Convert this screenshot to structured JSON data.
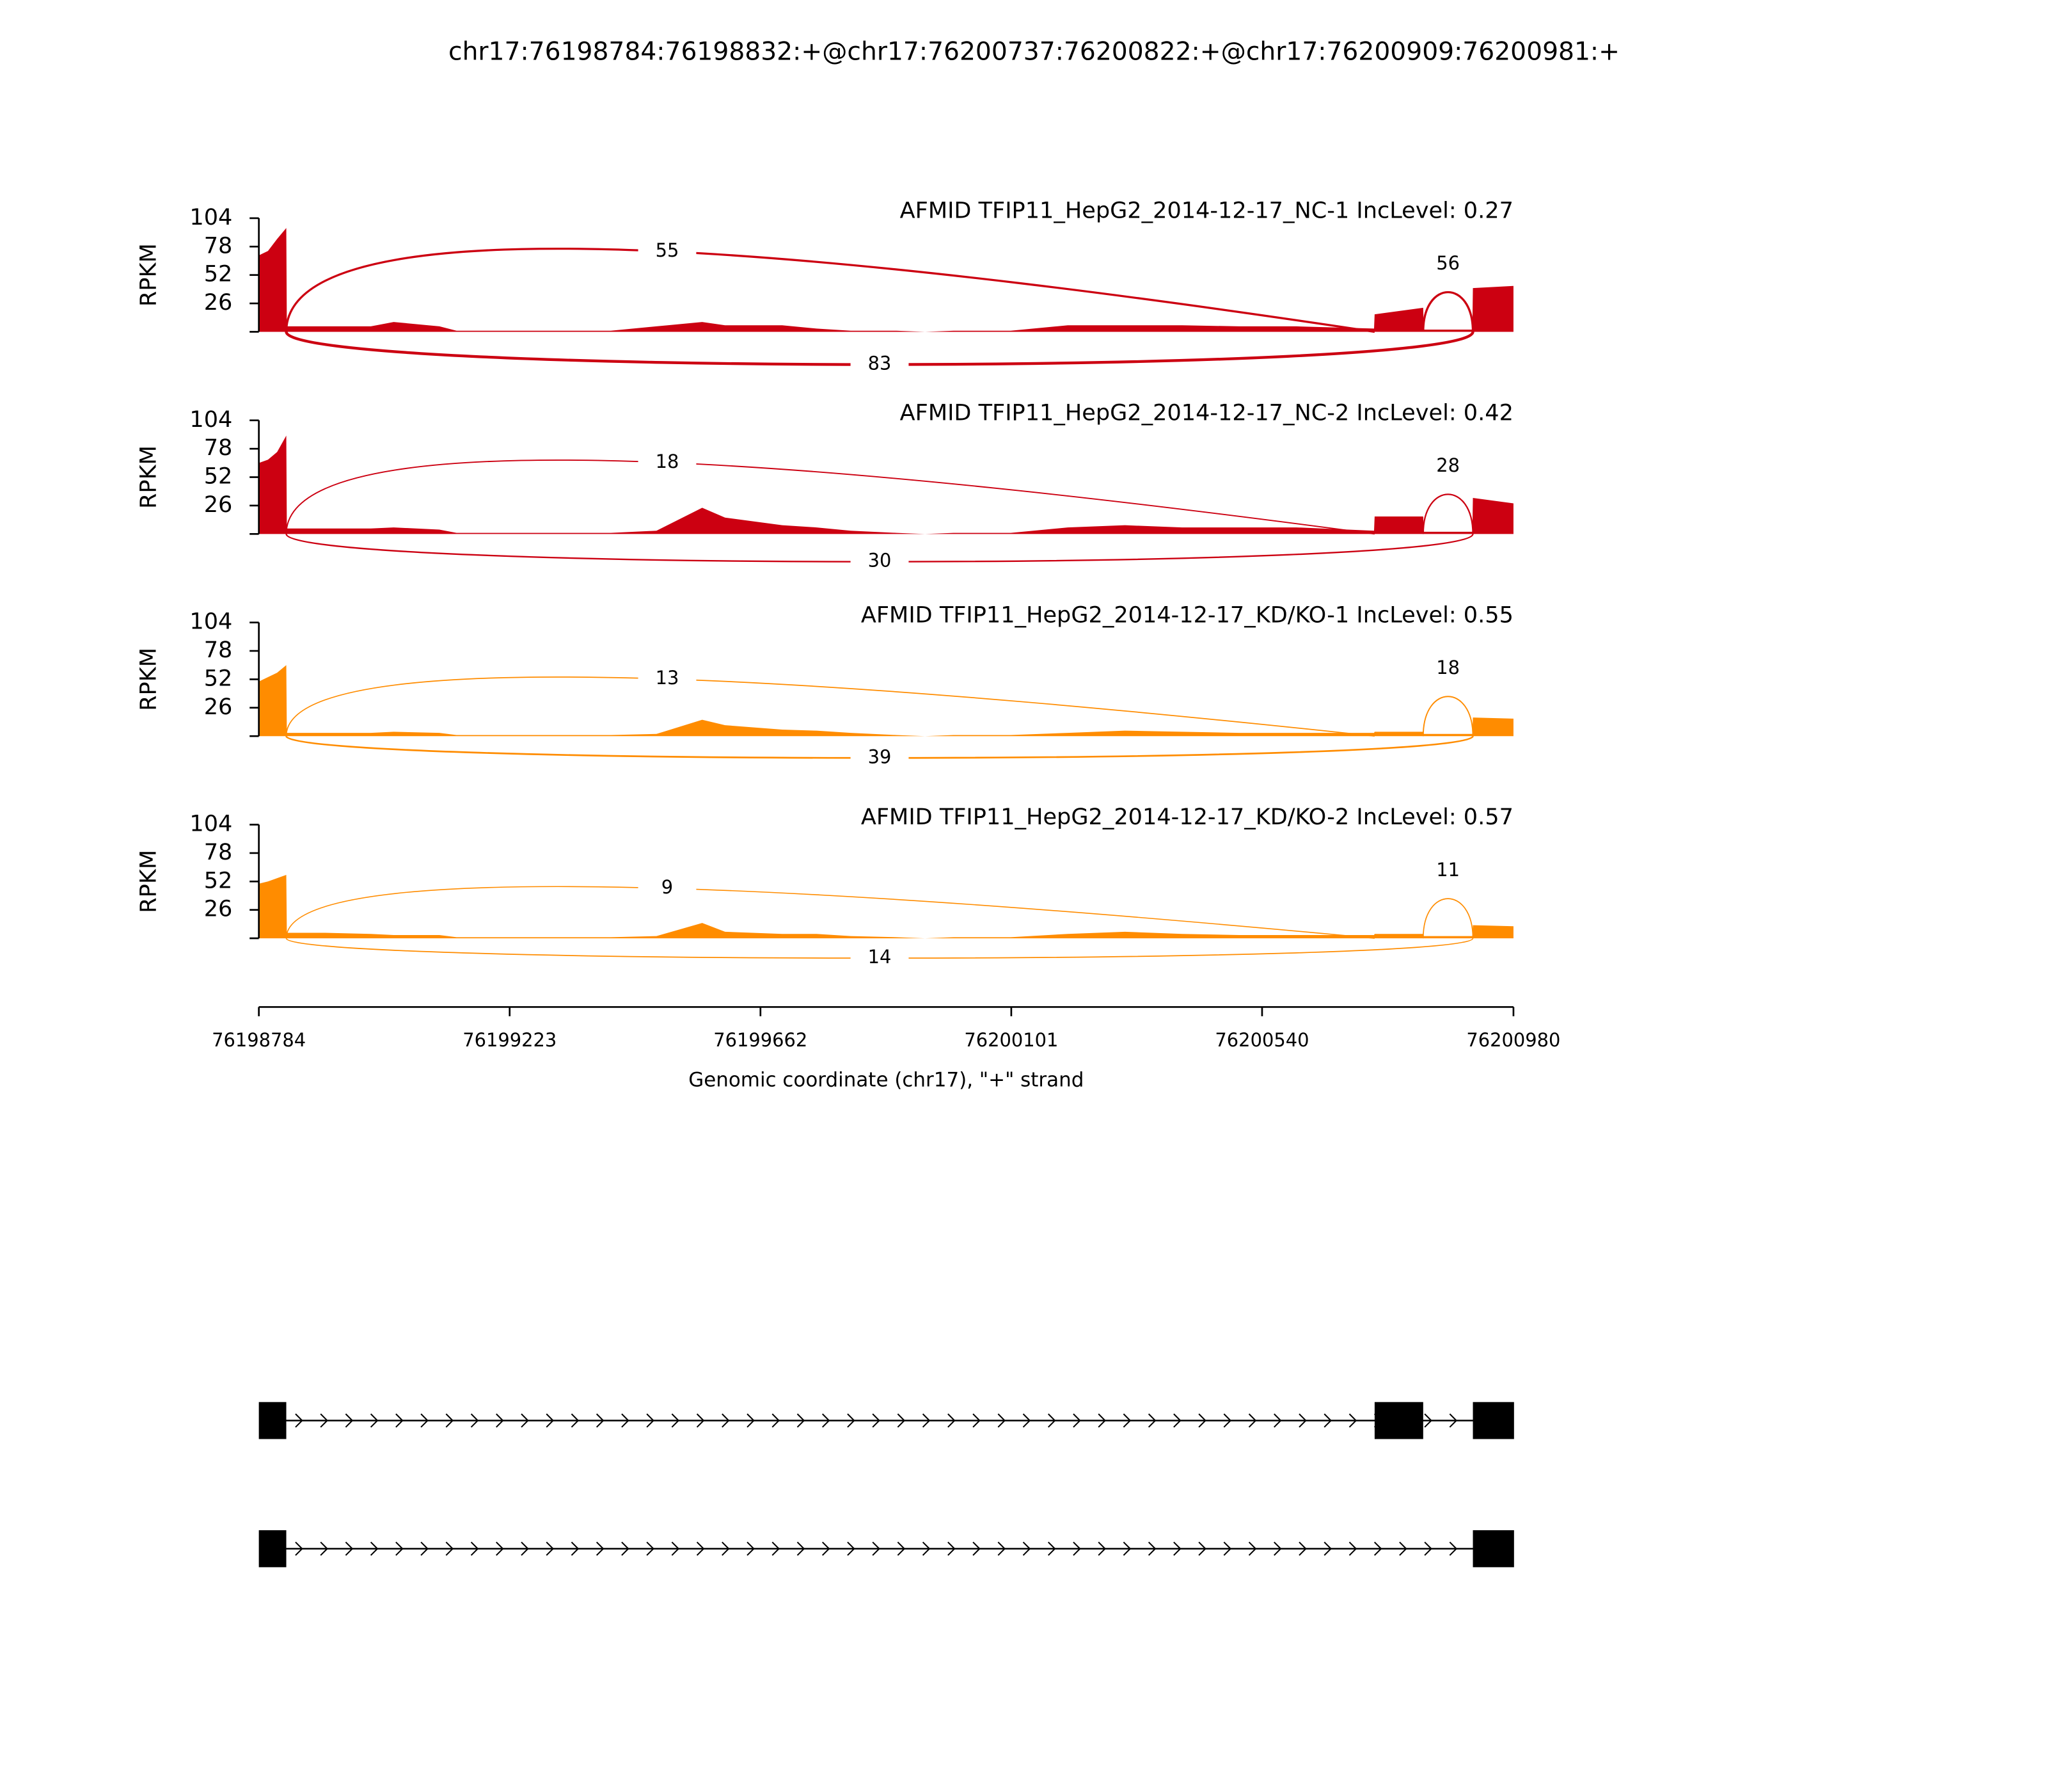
{
  "chart_data": {
    "type": "sashimi",
    "title": "chr17:76198784:76198832:+@chr17:76200737:76200822:+@chr17:76200909:76200981:+",
    "xlabel": "Genomic coordinate (chr17), \"+\" strand",
    "ylabel": "RPKM",
    "xlim": [
      76198784,
      76200980
    ],
    "xticks": [
      76198784,
      76199223,
      76199662,
      76200101,
      76200540,
      76200980
    ],
    "ylim": [
      0,
      104
    ],
    "yticks": [
      26,
      52,
      78,
      104
    ],
    "coverage_x": [
      76198784,
      76198800,
      76198816,
      76198832,
      76198833,
      76198900,
      76198980,
      76199020,
      76199100,
      76199130,
      76199300,
      76199400,
      76199480,
      76199560,
      76199600,
      76199700,
      76199760,
      76199820,
      76199900,
      76199950,
      76200000,
      76200100,
      76200200,
      76200300,
      76200400,
      76200500,
      76200600,
      76200736,
      76200737,
      76200822,
      76200823,
      76200908,
      76200909,
      76200980
    ],
    "tracks": [
      {
        "name": "AFMID TFIP11_HepG2_2014-12-17_NC-1 IncLevel: 0.27",
        "color": "#cc0011",
        "values": [
          70,
          74,
          85,
          95,
          5,
          5,
          5,
          9,
          5,
          1,
          1,
          1,
          5,
          9,
          6,
          6,
          3,
          1,
          1,
          0,
          1,
          1,
          6,
          6,
          6,
          5,
          5,
          3,
          16,
          22,
          2,
          2,
          40,
          42
        ],
        "junctions": [
          {
            "start": 76198832,
            "end": 76200737,
            "count": 55,
            "side": "above"
          },
          {
            "start": 76200822,
            "end": 76200909,
            "count": 56,
            "side": "above"
          },
          {
            "start": 76198832,
            "end": 76200909,
            "count": 83,
            "side": "below"
          }
        ]
      },
      {
        "name": "AFMID TFIP11_HepG2_2014-12-17_NC-2 IncLevel: 0.42",
        "color": "#cc0011",
        "values": [
          65,
          68,
          75,
          90,
          5,
          5,
          5,
          6,
          4,
          1,
          1,
          1,
          3,
          24,
          15,
          8,
          6,
          3,
          1,
          0,
          1,
          1,
          6,
          8,
          6,
          6,
          6,
          3,
          16,
          16,
          2,
          2,
          33,
          28
        ],
        "junctions": [
          {
            "start": 76198832,
            "end": 76200737,
            "count": 18,
            "side": "above"
          },
          {
            "start": 76200822,
            "end": 76200909,
            "count": 28,
            "side": "above"
          },
          {
            "start": 76198832,
            "end": 76200909,
            "count": 30,
            "side": "below"
          }
        ]
      },
      {
        "name": "AFMID TFIP11_HepG2_2014-12-17_KD/KO-1 IncLevel: 0.55",
        "color": "#ff8c00",
        "values": [
          50,
          54,
          58,
          65,
          3,
          3,
          3,
          4,
          3,
          1,
          1,
          1,
          2,
          15,
          10,
          6,
          5,
          3,
          1,
          0,
          1,
          1,
          3,
          5,
          4,
          3,
          3,
          3,
          4,
          4,
          2,
          2,
          17,
          16
        ],
        "junctions": [
          {
            "start": 76198832,
            "end": 76200737,
            "count": 13,
            "side": "above"
          },
          {
            "start": 76200822,
            "end": 76200909,
            "count": 18,
            "side": "above"
          },
          {
            "start": 76198832,
            "end": 76200909,
            "count": 39,
            "side": "below"
          }
        ]
      },
      {
        "name": "AFMID TFIP11_HepG2_2014-12-17_KD/KO-2 IncLevel: 0.57",
        "color": "#ff8c00",
        "values": [
          50,
          52,
          55,
          58,
          5,
          5,
          4,
          3,
          3,
          1,
          1,
          1,
          2,
          14,
          6,
          4,
          4,
          2,
          1,
          0,
          1,
          1,
          4,
          6,
          4,
          3,
          3,
          3,
          4,
          4,
          2,
          2,
          12,
          11
        ],
        "junctions": [
          {
            "start": 76198832,
            "end": 76200737,
            "count": 9,
            "side": "above"
          },
          {
            "start": 76200822,
            "end": 76200909,
            "count": 11,
            "side": "above"
          },
          {
            "start": 76198832,
            "end": 76200909,
            "count": 14,
            "side": "below"
          }
        ]
      }
    ],
    "transcripts": [
      {
        "exons": [
          [
            76198784,
            76198832
          ],
          [
            76200737,
            76200822
          ],
          [
            76200909,
            76200981
          ]
        ]
      },
      {
        "exons": [
          [
            76198784,
            76198832
          ],
          [
            76200909,
            76200981
          ]
        ]
      }
    ]
  }
}
